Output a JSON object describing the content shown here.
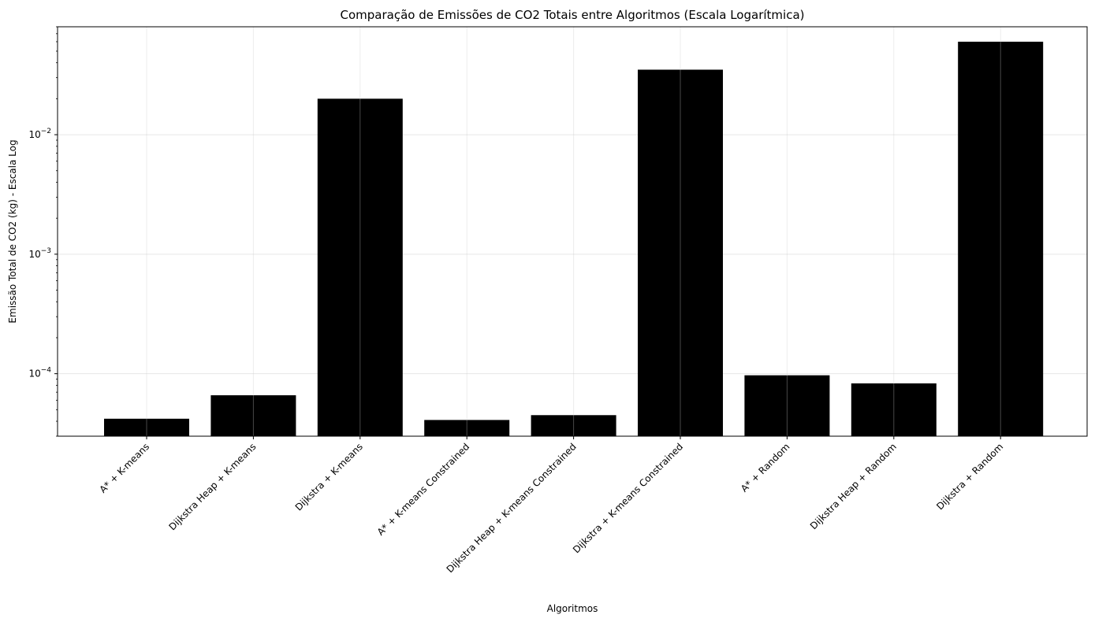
{
  "chart_data": {
    "type": "bar",
    "title": "Comparação de Emissões de CO2 Totais entre Algoritmos (Escala Logarítmica)",
    "xlabel": "Algoritmos",
    "ylabel": "Emissão Total de CO2 (kg) - Escala Log",
    "yscale": "log",
    "ylim": [
      3e-05,
      0.08
    ],
    "grid": true,
    "categories": [
      "A* + K-means",
      "Dijkstra Heap + K-means",
      "Dijkstra + K-means",
      "A* + K-means Constrained",
      "Dijkstra Heap + K-means Constrained",
      "Dijkstra + K-means Constrained",
      "A* + Random",
      "Dijkstra Heap + Random",
      "Dijkstra + Random"
    ],
    "values": [
      4.2e-05,
      6.6e-05,
      0.02,
      4.1e-05,
      4.5e-05,
      0.035,
      9.7e-05,
      8.3e-05,
      0.06
    ],
    "yticks": [
      {
        "value": 0.0001,
        "mantissa": "10",
        "exp": "−4"
      },
      {
        "value": 0.001,
        "mantissa": "10",
        "exp": "−3"
      },
      {
        "value": 0.01,
        "mantissa": "10",
        "exp": "−2"
      }
    ],
    "colors": {
      "bar": "#000000",
      "grid": "#e6e6e6",
      "axis": "#000000"
    }
  }
}
